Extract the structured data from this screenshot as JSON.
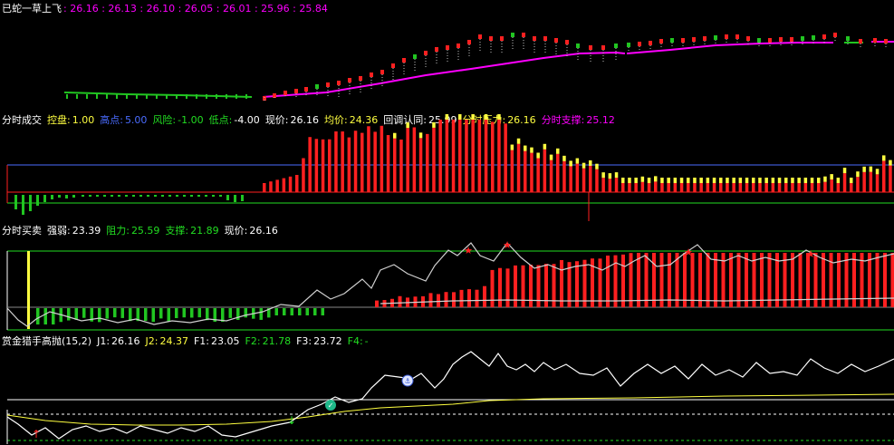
{
  "colors": {
    "white": "#ffffff",
    "magenta": "#ff00ff",
    "red": "#ff2020",
    "green": "#21c521",
    "yellow": "#ffff40",
    "blue": "#4a6cff",
    "gray": "#c0c0c0",
    "ltgreen": "#22dd22"
  },
  "panel1": {
    "title": "已蛇一草上飞",
    "values": ": 26.16 : 26.13 : 26.10 : 26.05 : 26.01 : 25.96 : 25.84"
  },
  "panel2": {
    "title": "分时成交",
    "items": [
      {
        "label": "控盘:",
        "value": "1.00",
        "label_color": "#ffff40",
        "value_color": "#ffff40"
      },
      {
        "label": "高点:",
        "value": "5.00",
        "label_color": "#4a6cff",
        "value_color": "#4a6cff"
      },
      {
        "label": "风险:",
        "value": "-1.00",
        "label_color": "#22dd22",
        "value_color": "#22dd22"
      },
      {
        "label": "低点:",
        "value": "-4.00",
        "label_color": "#22dd22",
        "value_color": "#ffffff"
      },
      {
        "label": "现价:",
        "value": "26.16",
        "label_color": "#ffffff",
        "value_color": "#ffffff"
      },
      {
        "label": "均价:",
        "value": "24.36",
        "label_color": "#ffff40",
        "value_color": "#ffff40"
      },
      {
        "label": "回调认同:",
        "value": "25.99",
        "label_color": "#ffffff",
        "value_color": "#ffffff"
      },
      {
        "label": "分时压力:",
        "value": "26.16",
        "label_color": "#ffff40",
        "value_color": "#ffff40"
      },
      {
        "label": "分时支撑:",
        "value": "25.12",
        "label_color": "#ff00ff",
        "value_color": "#ff00ff"
      }
    ]
  },
  "panel3": {
    "title": "分时买卖",
    "items": [
      {
        "label": "强弱:",
        "value": "23.39",
        "label_color": "#ffffff",
        "value_color": "#ffffff"
      },
      {
        "label": "阻力:",
        "value": "25.59",
        "label_color": "#22dd22",
        "value_color": "#22dd22"
      },
      {
        "label": "支撑:",
        "value": "21.89",
        "label_color": "#22dd22",
        "value_color": "#22dd22"
      },
      {
        "label": "现价:",
        "value": "26.16",
        "label_color": "#ffffff",
        "value_color": "#ffffff"
      }
    ]
  },
  "panel4": {
    "title": "赏金猎手高抛(15,2)",
    "items": [
      {
        "label": "J1:",
        "value": "26.16",
        "label_color": "#ffffff",
        "value_color": "#ffffff"
      },
      {
        "label": "J2:",
        "value": "24.37",
        "label_color": "#ffff40",
        "value_color": "#ffff40"
      },
      {
        "label": "F1:",
        "value": "23.05",
        "label_color": "#ffffff",
        "value_color": "#ffffff"
      },
      {
        "label": "F2:",
        "value": "21.78",
        "label_color": "#22dd22",
        "value_color": "#22dd22"
      },
      {
        "label": "F3:",
        "value": "23.72",
        "label_color": "#ffffff",
        "value_color": "#ffffff"
      },
      {
        "label": "F4:",
        "value": "-",
        "label_color": "#22dd22",
        "value_color": "#22dd22"
      }
    ]
  }
}
